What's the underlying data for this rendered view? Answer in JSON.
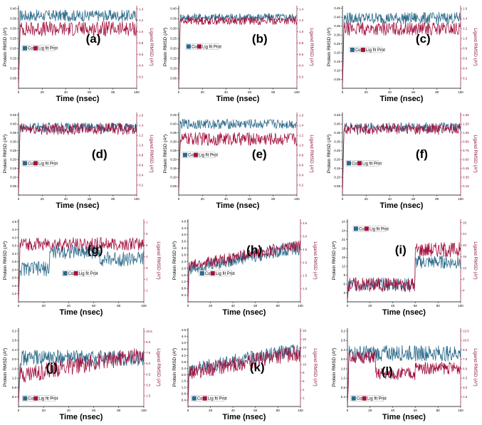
{
  "figure": {
    "colors": {
      "protein": "#2a6a8a",
      "ligand": "#a3123f",
      "axis_right": "#8a1538"
    },
    "legend": {
      "protein_label": "Cα",
      "ligand_label": "Lig fit Prot"
    }
  },
  "chart_data": [
    {
      "panel": "(a)",
      "type": "line",
      "xlabel": "Time (nsec)",
      "ylabel_left": "Protein RMSD (Aº)",
      "ylabel_right": "Ligand RMSD (Aº)",
      "xlim": [
        0,
        100
      ],
      "xticks": [
        "0",
        "20",
        "40",
        "60",
        "80",
        "100"
      ],
      "yticks_left": [
        "0.05",
        "0.10",
        "0.15",
        "0.20",
        "0.25",
        "0.30",
        "0.35",
        "0.40"
      ],
      "yticks_right": [
        "0.2",
        "0.4",
        "0.6",
        "0.8",
        "1.0",
        "1.2",
        "1.4"
      ],
      "series": [
        {
          "name": "Cα",
          "level": 0.88,
          "noise": 0.07
        },
        {
          "name": "Lig fit Prot",
          "level": 0.72,
          "noise": 0.09
        }
      ]
    },
    {
      "panel": "(b)",
      "type": "line",
      "xlabel": "Time (nsec)",
      "ylabel_left": "Protein RMSD (Aº)",
      "ylabel_right": "Ligand RMSD (Aº)",
      "xlim": [
        0,
        100
      ],
      "xticks": [
        "0",
        "20",
        "40",
        "60",
        "80",
        "100"
      ],
      "yticks_left": [
        "0.05",
        "0.10",
        "0.15",
        "0.20",
        "0.25",
        "0.30",
        "0.35",
        "0.40"
      ],
      "yticks_right": [
        "0.2",
        "0.4",
        "0.6",
        "0.8",
        "1.0",
        "1.2",
        "1.4"
      ],
      "series": [
        {
          "name": "Cα",
          "level": 0.86,
          "noise": 0.05
        },
        {
          "name": "Lig fit Prot",
          "level": 0.82,
          "noise": 0.05
        }
      ]
    },
    {
      "panel": "(c)",
      "type": "line",
      "xlabel": "Time (nsec)",
      "ylabel_left": "Protein RMSD (Aº)",
      "ylabel_right": "Ligand RMSD (Aº)",
      "xlim": [
        0,
        100
      ],
      "xticks": [
        "0",
        "20",
        "40",
        "60",
        "80",
        "100"
      ],
      "yticks_left": [
        "0.05",
        "0.10",
        "0.15",
        "0.20",
        "0.25",
        "0.30",
        "0.35",
        "0.40",
        "0.45"
      ],
      "yticks_right": [
        "0.2",
        "0.4",
        "0.6",
        "0.8",
        "1.0",
        "1.2",
        "1.4",
        "1.6"
      ],
      "series": [
        {
          "name": "Cα",
          "level": 0.85,
          "noise": 0.07
        },
        {
          "name": "Lig fit Prot",
          "level": 0.72,
          "noise": 0.08
        }
      ]
    },
    {
      "panel": "(d)",
      "type": "line",
      "xlabel": "Time (nsec)",
      "ylabel_left": "Protein RMSD (Aº)",
      "ylabel_right": "Ligand RMSD (Aº)",
      "xlim": [
        0,
        100
      ],
      "xticks": [
        "0",
        "20",
        "40",
        "60",
        "80",
        "100"
      ],
      "yticks_left": [
        "0.05",
        "0.10",
        "0.15",
        "0.20",
        "0.25",
        "0.30",
        "0.35",
        "0.40",
        "0.45"
      ],
      "yticks_right": [
        "0.2",
        "0.4",
        "0.6",
        "0.8",
        "1.0",
        "1.2",
        "1.4",
        "1.6"
      ],
      "series": [
        {
          "name": "Cα",
          "level": 0.82,
          "noise": 0.06
        },
        {
          "name": "Lig fit Prot",
          "level": 0.8,
          "noise": 0.07
        }
      ]
    },
    {
      "panel": "(e)",
      "type": "line",
      "xlabel": "Time (nsec)",
      "ylabel_left": "Protein RMSD (Aº)",
      "ylabel_right": "Ligand RMSD (Aº)",
      "xlim": [
        0,
        100
      ],
      "xticks": [
        "0",
        "20",
        "40",
        "60",
        "80",
        "100"
      ],
      "yticks_left": [
        "0.05",
        "0.10",
        "0.15",
        "0.20",
        "0.25",
        "0.30",
        "0.35",
        "0.40",
        "0.45"
      ],
      "yticks_right": [
        "0.2",
        "0.4",
        "0.6",
        "0.8",
        "1.0",
        "1.2",
        "1.4",
        "1.6"
      ],
      "series": [
        {
          "name": "Cα",
          "level": 0.86,
          "noise": 0.06
        },
        {
          "name": "Lig fit Prot",
          "level": 0.68,
          "noise": 0.08
        }
      ]
    },
    {
      "panel": "(f)",
      "type": "line",
      "xlabel": "Time (nsec)",
      "ylabel_left": "Protein RMSD (Aº)",
      "ylabel_right": "Ligand RMSD (Aº)",
      "xlim": [
        0,
        100
      ],
      "xticks": [
        "0",
        "20",
        "40",
        "60",
        "80",
        "100"
      ],
      "yticks_left": [
        "0.05",
        "0.10",
        "0.15",
        "0.20",
        "0.25",
        "0.30",
        "0.35",
        "0.40",
        "0.45"
      ],
      "yticks_right": [
        "0.15",
        "0.30",
        "0.45",
        "0.60",
        "0.75",
        "0.90",
        "1.05",
        "1.20",
        "1.35"
      ],
      "series": [
        {
          "name": "Cα",
          "level": 0.82,
          "noise": 0.06
        },
        {
          "name": "Lig fit Prot",
          "level": 0.8,
          "noise": 0.07
        }
      ]
    },
    {
      "panel": "(g)",
      "type": "line",
      "xlabel": "Time (nsec)",
      "ylabel_left": "Protein RMSD (Aº)",
      "ylabel_right": "Ligand RMSD (Aº)",
      "xlim": [
        0,
        100
      ],
      "xticks": [
        "0",
        "20",
        "40",
        "60",
        "80",
        "100"
      ],
      "yticks_left": [
        "1.2",
        "1.6",
        "2.0",
        "2.4",
        "2.8",
        "3.2",
        "3.6",
        "4.0",
        "4.4",
        "4.8"
      ],
      "yticks_right": [
        "1",
        "2",
        "3",
        "4",
        "5",
        "6",
        "7"
      ],
      "series": [
        {
          "name": "Cα",
          "level": 0.55,
          "noise": 0.09,
          "shape": "step"
        },
        {
          "name": "Lig fit Prot",
          "level": 0.7,
          "noise": 0.08
        }
      ]
    },
    {
      "panel": "(h)",
      "type": "line",
      "xlabel": "Time (nsec)",
      "ylabel_left": "Protein RMSD (Aº)",
      "ylabel_right": "Ligand RMSD (Aº)",
      "xlim": [
        0,
        100
      ],
      "xticks": [
        "0",
        "20",
        "40",
        "60",
        "80",
        "100"
      ],
      "yticks_left": [
        "0.4",
        "0.8",
        "1.2",
        "1.6",
        "2.0",
        "2.4",
        "2.8",
        "3.2",
        "3.6",
        "4.0",
        "4.4",
        "4.8"
      ],
      "yticks_right": [
        "1.0",
        "1.5",
        "2.0",
        "2.5",
        "3.0",
        "3.5"
      ],
      "series": [
        {
          "name": "Cα",
          "level": 0.55,
          "noise": 0.08,
          "shape": "rise"
        },
        {
          "name": "Lig fit Prot",
          "level": 0.58,
          "noise": 0.07,
          "shape": "rise"
        }
      ]
    },
    {
      "panel": "(i)",
      "type": "line",
      "xlabel": "Time (nsec)",
      "ylabel_left": "Protein RMSD (Aº)",
      "ylabel_right": "Ligand RMSD (Aº)",
      "xlim": [
        0,
        100
      ],
      "xticks": [
        "0",
        "20",
        "40",
        "60",
        "80",
        "100"
      ],
      "yticks_left": [
        "3",
        "6",
        "9",
        "12",
        "15",
        "18",
        "21",
        "24",
        "27"
      ],
      "yticks_right": [
        "4",
        "8",
        "12",
        "16",
        "20",
        "24",
        "28"
      ],
      "series": [
        {
          "name": "Cα",
          "level": 0.3,
          "noise": 0.08,
          "shape": "jump"
        },
        {
          "name": "Lig fit Prot",
          "level": 0.3,
          "noise": 0.09,
          "shape": "jump2"
        }
      ]
    },
    {
      "panel": "(j)",
      "type": "line",
      "xlabel": "Time (nsec)",
      "ylabel_left": "Protein RMSD (Aº)",
      "ylabel_right": "Ligand RMSD (Aº)",
      "xlim": [
        0,
        100
      ],
      "xticks": [
        "0",
        "20",
        "40",
        "60",
        "80",
        "100"
      ],
      "yticks_left": [
        "0.4",
        "0.8",
        "1.2",
        "1.6",
        "2.0",
        "2.4",
        "2.8",
        "3.2"
      ],
      "yticks_right": [
        "1.5",
        "3.0",
        "4.5",
        "6.0",
        "7.5",
        "9.0",
        "10.5"
      ],
      "series": [
        {
          "name": "Cα",
          "level": 0.62,
          "noise": 0.1
        },
        {
          "name": "Lig fit Prot",
          "level": 0.55,
          "noise": 0.11,
          "shape": "rise"
        }
      ]
    },
    {
      "panel": "(k)",
      "type": "line",
      "xlabel": "Time (nsec)",
      "ylabel_left": "Protein RMSD (Aº)",
      "ylabel_right": "Ligand RMSD (Aº)",
      "xlim": [
        0,
        100
      ],
      "xticks": [
        "0",
        "20",
        "40",
        "60",
        "80",
        "100"
      ],
      "yticks_left": [
        "0.4",
        "0.8",
        "1.2",
        "1.6",
        "2.0",
        "2.4",
        "2.8",
        "3.2",
        "3.6",
        "4.0",
        "4.4",
        "4.8"
      ],
      "yticks_right": [
        "2",
        "4",
        "6",
        "8",
        "10",
        "12",
        "14",
        "16",
        "18"
      ],
      "series": [
        {
          "name": "Cα",
          "level": 0.62,
          "noise": 0.09,
          "shape": "rise"
        },
        {
          "name": "Lig fit Prot",
          "level": 0.58,
          "noise": 0.1,
          "shape": "rise"
        }
      ]
    },
    {
      "panel": "(l)",
      "type": "line",
      "xlabel": "Time (nsec)",
      "ylabel_left": "Protein RMSD (Aº)",
      "ylabel_right": "Ligand RMSD (Aº)",
      "xlim": [
        0,
        100
      ],
      "xticks": [
        "0",
        "20",
        "40",
        "60",
        "80",
        "100"
      ],
      "yticks_left": [
        "0.4",
        "0.8",
        "1.2",
        "1.6",
        "2.0",
        "2.4",
        "2.8",
        "3.2"
      ],
      "yticks_right": [
        "1.5",
        "3.0",
        "4.5",
        "6.0",
        "7.5",
        "9.0",
        "10.5",
        "12.5"
      ],
      "series": [
        {
          "name": "Cα",
          "level": 0.68,
          "noise": 0.1
        },
        {
          "name": "Lig fit Prot",
          "level": 0.42,
          "noise": 0.08,
          "shape": "dropl"
        }
      ]
    }
  ]
}
